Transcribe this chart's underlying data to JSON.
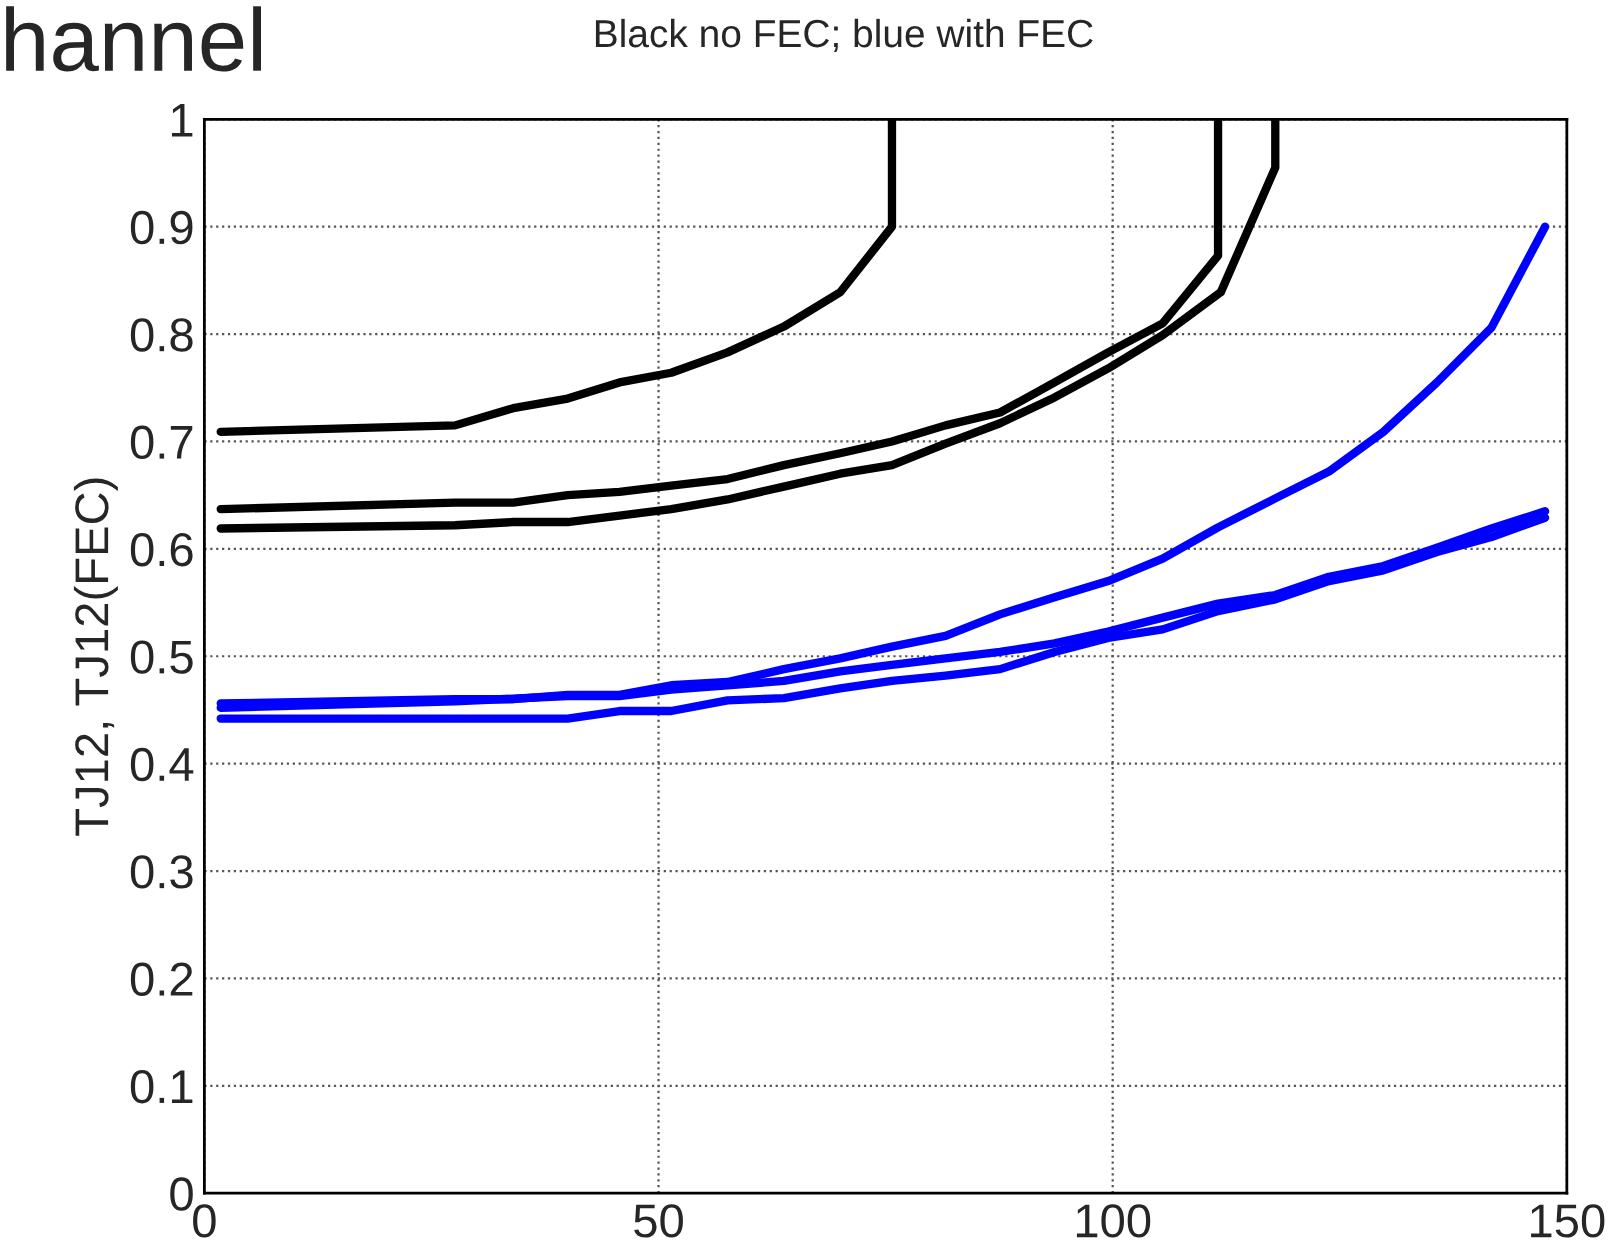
{
  "chart_data": {
    "type": "line",
    "title": "hannel",
    "subtitle": "Black no FEC; blue with FEC",
    "ylabel": "TJ12, TJ12(FEC)",
    "xlim": [
      0,
      150
    ],
    "xticks": [
      0,
      50,
      100,
      150
    ],
    "ylim": [
      0,
      1
    ],
    "yticks": [
      0,
      0.1,
      0.2,
      0.3,
      0.4,
      0.5,
      0.6,
      0.7,
      0.8,
      0.9,
      1
    ],
    "grid": true,
    "line_style": "solid",
    "marker": "none",
    "series": [
      {
        "color": "#000000",
        "x": [
          1.8,
          27.6,
          34.0,
          40.0,
          45.7,
          51.4,
          57.6,
          63.8,
          70.0,
          75.7,
          75.7
        ],
        "values": [
          0.709,
          0.715,
          0.731,
          0.74,
          0.755,
          0.764,
          0.783,
          0.807,
          0.839,
          0.9,
          1.0
        ]
      },
      {
        "color": "#000000",
        "x": [
          1.8,
          27.6,
          34.0,
          40.0,
          45.7,
          51.4,
          57.6,
          63.8,
          70.0,
          75.7,
          81.6,
          87.6,
          93.6,
          99.5,
          105.5,
          111.6,
          111.6
        ],
        "values": [
          0.637,
          0.643,
          0.643,
          0.65,
          0.653,
          0.659,
          0.665,
          0.678,
          0.689,
          0.7,
          0.715,
          0.727,
          0.755,
          0.783,
          0.81,
          0.873,
          1.0
        ]
      },
      {
        "color": "#000000",
        "x": [
          1.8,
          27.6,
          34.0,
          40.0,
          45.7,
          51.4,
          57.6,
          63.8,
          70.0,
          75.7,
          81.6,
          87.6,
          93.6,
          99.5,
          105.5,
          111.9,
          117.9,
          117.9
        ],
        "values": [
          0.619,
          0.622,
          0.625,
          0.625,
          0.631,
          0.637,
          0.646,
          0.658,
          0.67,
          0.678,
          0.698,
          0.717,
          0.741,
          0.768,
          0.799,
          0.839,
          0.955,
          1.0
        ]
      },
      {
        "color": "#0000ff",
        "x": [
          1.8,
          27.6,
          34.0,
          40.0,
          45.7,
          51.4,
          57.6,
          63.8,
          70.0,
          75.7,
          81.6,
          87.6,
          93.6,
          99.5,
          105.5,
          111.6,
          117.9,
          123.8,
          129.8,
          135.7,
          141.7,
          147.6
        ],
        "values": [
          0.456,
          0.46,
          0.46,
          0.464,
          0.464,
          0.473,
          0.476,
          0.488,
          0.498,
          0.509,
          0.519,
          0.539,
          0.555,
          0.57,
          0.591,
          0.62,
          0.647,
          0.672,
          0.709,
          0.755,
          0.806,
          0.9
        ]
      },
      {
        "color": "#0000ff",
        "x": [
          1.8,
          27.6,
          40.0,
          45.7,
          51.4,
          57.6,
          63.8,
          70.0,
          75.7,
          81.6,
          87.6,
          93.6,
          99.5,
          105.5,
          111.6,
          117.9,
          123.8,
          129.8,
          135.7,
          141.7,
          147.6
        ],
        "values": [
          0.452,
          0.458,
          0.463,
          0.463,
          0.469,
          0.473,
          0.477,
          0.486,
          0.492,
          0.498,
          0.504,
          0.512,
          0.523,
          0.536,
          0.549,
          0.557,
          0.574,
          0.584,
          0.601,
          0.619,
          0.635
        ]
      },
      {
        "color": "#0000ff",
        "x": [
          1.8,
          40.0,
          45.7,
          51.4,
          57.6,
          63.8,
          70.0,
          75.7,
          81.6,
          87.6,
          93.6,
          99.5,
          105.5,
          111.6,
          117.9,
          123.8,
          129.8,
          135.7,
          141.7,
          147.6
        ],
        "values": [
          0.442,
          0.442,
          0.449,
          0.449,
          0.459,
          0.461,
          0.47,
          0.477,
          0.482,
          0.488,
          0.504,
          0.517,
          0.525,
          0.542,
          0.553,
          0.57,
          0.58,
          0.597,
          0.611,
          0.629
        ]
      }
    ]
  }
}
